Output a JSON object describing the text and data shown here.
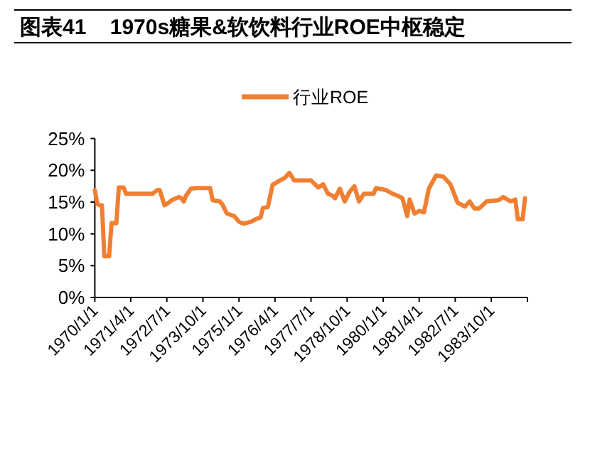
{
  "chart_data": {
    "type": "line",
    "title": "图表41    1970s糖果&软饮料行业ROE中枢稳定",
    "x": [
      "1970-01",
      "1970-02",
      "1970-03",
      "1970-04",
      "1970-05",
      "1970-07",
      "1970-08",
      "1970-10",
      "1970-11",
      "1971-01",
      "1971-02",
      "1972-01",
      "1972-03",
      "1972-04",
      "1972-06",
      "1972-07",
      "1972-09",
      "1972-12",
      "1973-01",
      "1973-02",
      "1973-03",
      "1973-05",
      "1973-07",
      "1974-01",
      "1974-02",
      "1974-05",
      "1974-06",
      "1974-08",
      "1974-11",
      "1975-01",
      "1975-03",
      "1975-06",
      "1975-08",
      "1975-10",
      "1975-11",
      "1976-01",
      "1976-03",
      "1976-06",
      "1976-08",
      "1976-10",
      "1976-12",
      "1977-07",
      "1977-10",
      "1977-12",
      "1978-02",
      "1978-04",
      "1978-05",
      "1978-07",
      "1978-09",
      "1978-11",
      "1979-01",
      "1979-03",
      "1979-05",
      "1979-09",
      "1979-10",
      "1980-02",
      "1980-05",
      "1980-07",
      "1980-09",
      "1980-11",
      "1980-12",
      "1981-02",
      "1981-04",
      "1981-06",
      "1981-08",
      "1981-11",
      "1982-02",
      "1982-05",
      "1982-08",
      "1982-11",
      "1983-01",
      "1983-03",
      "1983-05",
      "1983-08",
      "1984-01",
      "1984-03",
      "1984-06",
      "1984-08",
      "1984-09",
      "1984-11",
      "1984-12"
    ],
    "series": [
      {
        "name": "行业ROE",
        "color": "#f07f32",
        "values": [
          16.9,
          14.7,
          14.5,
          14.5,
          6.5,
          6.5,
          11.7,
          11.7,
          17.3,
          17.3,
          16.3,
          16.3,
          16.9,
          16.9,
          14.5,
          14.7,
          15.3,
          15.8,
          15.6,
          15.1,
          16.0,
          17.1,
          17.2,
          17.2,
          15.3,
          15.1,
          14.7,
          13.2,
          12.8,
          11.9,
          11.6,
          11.9,
          12.3,
          12.6,
          14.1,
          14.2,
          17.7,
          18.4,
          18.8,
          19.6,
          18.4,
          18.4,
          17.3,
          17.8,
          16.3,
          16.0,
          15.6,
          17.1,
          15.1,
          16.6,
          17.5,
          15.1,
          16.3,
          16.3,
          17.2,
          16.9,
          16.3,
          16.0,
          15.6,
          12.8,
          15.4,
          13.2,
          13.6,
          13.4,
          17.1,
          19.2,
          19.0,
          17.8,
          14.9,
          14.3,
          15.1,
          14.0,
          14.0,
          15.1,
          15.3,
          15.8,
          15.1,
          15.4,
          12.3,
          12.3,
          15.6
        ]
      }
    ],
    "xlim": [
      "1970-01",
      "1985-01"
    ],
    "xticks": [
      {
        "value": "1970-01",
        "label": "1970/1/1"
      },
      {
        "value": "1971-04",
        "label": "1971/4/1"
      },
      {
        "value": "1972-07",
        "label": "1972/7/1"
      },
      {
        "value": "1973-10",
        "label": "1973/10/1"
      },
      {
        "value": "1975-01",
        "label": "1975/1/1"
      },
      {
        "value": "1976-04",
        "label": "1976/4/1"
      },
      {
        "value": "1977-07",
        "label": "1977/7/1"
      },
      {
        "value": "1978-10",
        "label": "1978/10/1"
      },
      {
        "value": "1980-01",
        "label": "1980/1/1"
      },
      {
        "value": "1981-04",
        "label": "1981/4/1"
      },
      {
        "value": "1982-07",
        "label": "1982/7/1"
      },
      {
        "value": "1983-10",
        "label": "1983/10/1"
      },
      {
        "value": "1985-01",
        "label": null
      }
    ],
    "ylim": [
      0,
      25
    ],
    "yticks": [
      {
        "value": 0,
        "label": "0%"
      },
      {
        "value": 5,
        "label": "5%"
      },
      {
        "value": 10,
        "label": "10%"
      },
      {
        "value": 15,
        "label": "15%"
      },
      {
        "value": 20,
        "label": "20%"
      },
      {
        "value": 25,
        "label": "25%"
      }
    ],
    "grid": false,
    "legend": "top",
    "marker": "none",
    "line_style": "solid"
  }
}
